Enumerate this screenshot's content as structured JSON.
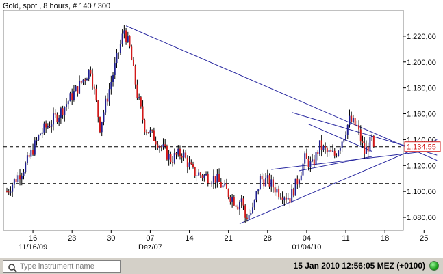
{
  "chart_data": {
    "type": "candlestick",
    "title": "Gold, spot , 8 hours, # 140 / 300",
    "ylim": [
      1070,
      1240
    ],
    "yticks": [
      1080,
      1100,
      1120,
      1140,
      1160,
      1180,
      1200,
      1220
    ],
    "ytick_labels": [
      "1.080,00",
      "1.100,00",
      "1.120,00",
      "1.140,00",
      "1.160,00",
      "1.180,00",
      "1.200,00",
      "1.220,00"
    ],
    "x_tick_labels": [
      {
        "label": "16",
        "sub": "11/16/09",
        "bar": 14
      },
      {
        "label": "23",
        "sub": "",
        "bar": 35
      },
      {
        "label": "30",
        "sub": "",
        "bar": 56
      },
      {
        "label": "07",
        "sub": "Dez/07",
        "bar": 77
      },
      {
        "label": "14",
        "sub": "",
        "bar": 98
      },
      {
        "label": "21",
        "sub": "",
        "bar": 119
      },
      {
        "label": "28",
        "sub": "",
        "bar": 140
      },
      {
        "label": "04",
        "sub": "01/04/10",
        "bar": 161
      },
      {
        "label": "11",
        "sub": "",
        "bar": 182
      },
      {
        "label": "18",
        "sub": "",
        "bar": 203
      },
      {
        "label": "25",
        "sub": "",
        "bar": 224
      }
    ],
    "last_price": 1134.55,
    "last_price_label": "1.134,55",
    "reference_levels": [
      1134.55,
      1106
    ],
    "bars_shown": 198,
    "anchors": [
      [
        0,
        1100
      ],
      [
        10,
        1120
      ],
      [
        18,
        1145
      ],
      [
        28,
        1160
      ],
      [
        38,
        1180
      ],
      [
        45,
        1195
      ],
      [
        50,
        1150
      ],
      [
        56,
        1185
      ],
      [
        63,
        1225
      ],
      [
        66,
        1210
      ],
      [
        70,
        1175
      ],
      [
        74,
        1150
      ],
      [
        80,
        1140
      ],
      [
        88,
        1125
      ],
      [
        94,
        1130
      ],
      [
        100,
        1115
      ],
      [
        106,
        1112
      ],
      [
        112,
        1110
      ],
      [
        118,
        1100
      ],
      [
        124,
        1090
      ],
      [
        126,
        1095
      ],
      [
        128,
        1080
      ],
      [
        132,
        1085
      ],
      [
        136,
        1110
      ],
      [
        140,
        1108
      ],
      [
        146,
        1100
      ],
      [
        152,
        1095
      ],
      [
        156,
        1108
      ],
      [
        160,
        1125
      ],
      [
        164,
        1120
      ],
      [
        168,
        1135
      ],
      [
        172,
        1130
      ],
      [
        176,
        1128
      ],
      [
        180,
        1140
      ],
      [
        184,
        1155
      ],
      [
        188,
        1150
      ],
      [
        192,
        1130
      ],
      [
        196,
        1140
      ],
      [
        198,
        1135
      ]
    ],
    "trendlines": [
      {
        "x0": 64,
        "y0": 1228,
        "x1": 231,
        "y1": 1124
      },
      {
        "x0": 125,
        "y0": 1075,
        "x1": 231,
        "y1": 1140
      },
      {
        "x0": 153,
        "y0": 1161,
        "x1": 231,
        "y1": 1128
      },
      {
        "x0": 142,
        "y0": 1117,
        "x1": 231,
        "y1": 1132
      },
      {
        "x0": 162,
        "y0": 1152,
        "x1": 196,
        "y1": 1131
      },
      {
        "x0": 157,
        "y0": 1116,
        "x1": 196,
        "y1": 1127
      }
    ],
    "colors": {
      "up": "#1f1f8f",
      "down": "#d21919",
      "line": "#2828a0",
      "grid": "#000000"
    }
  },
  "status_bar": {
    "search_placeholder": "Type instrument name",
    "datetime": "15 Jan 2010 12:56:05  MEZ (+0100)",
    "search_icon": "magnifier-icon",
    "status_icon": "connection-ok-icon"
  }
}
